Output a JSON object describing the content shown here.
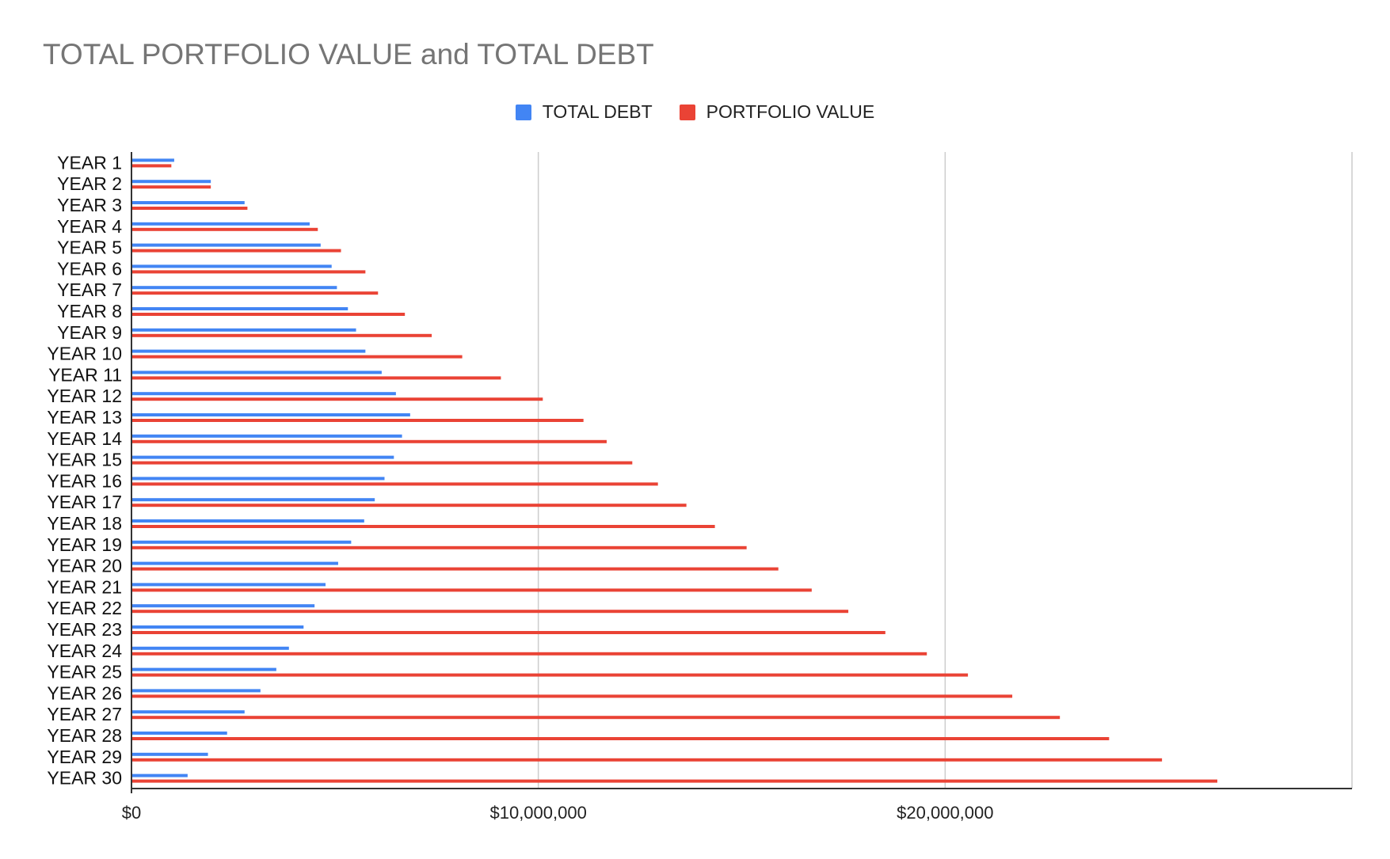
{
  "chart_data": {
    "type": "bar",
    "orientation": "horizontal",
    "title": "TOTAL PORTFOLIO VALUE and TOTAL DEBT",
    "xlabel": "",
    "ylabel": "",
    "xlim": [
      0,
      30000000
    ],
    "xticks": [
      0,
      10000000,
      20000000,
      30000000
    ],
    "xtick_labels": [
      "$0",
      "$10,000,000",
      "$20,000,000",
      ""
    ],
    "grid": true,
    "legend_position": "top",
    "categories": [
      "YEAR 1",
      "YEAR 2",
      "YEAR 3",
      "YEAR 4",
      "YEAR 5",
      "YEAR 6",
      "YEAR 7",
      "YEAR 8",
      "YEAR 9",
      "YEAR 10",
      "YEAR 11",
      "YEAR 12",
      "YEAR 13",
      "YEAR 14",
      "YEAR 15",
      "YEAR 16",
      "YEAR 17",
      "YEAR 18",
      "YEAR 19",
      "YEAR 20",
      "YEAR 21",
      "YEAR 22",
      "YEAR 23",
      "YEAR 24",
      "YEAR 25",
      "YEAR 26",
      "YEAR 27",
      "YEAR 28",
      "YEAR 29",
      "YEAR 30"
    ],
    "series": [
      {
        "name": "TOTAL DEBT",
        "color": "#4285f4",
        "values": [
          1050000,
          1950000,
          2780000,
          4380000,
          4650000,
          4920000,
          5050000,
          5320000,
          5520000,
          5750000,
          6150000,
          6500000,
          6850000,
          6650000,
          6450000,
          6220000,
          5980000,
          5720000,
          5400000,
          5080000,
          4770000,
          4500000,
          4230000,
          3870000,
          3560000,
          3170000,
          2780000,
          2350000,
          1880000,
          1380000
        ]
      },
      {
        "name": "PORTFOLIO VALUE",
        "color": "#ea4335",
        "values": [
          980000,
          1950000,
          2850000,
          4580000,
          5150000,
          5750000,
          6060000,
          6720000,
          7380000,
          8130000,
          9080000,
          10110000,
          11110000,
          11680000,
          12310000,
          12940000,
          13640000,
          14340000,
          15120000,
          15900000,
          16720000,
          17620000,
          18530000,
          19550000,
          20560000,
          21650000,
          22820000,
          24030000,
          25330000,
          26690000
        ]
      }
    ]
  }
}
